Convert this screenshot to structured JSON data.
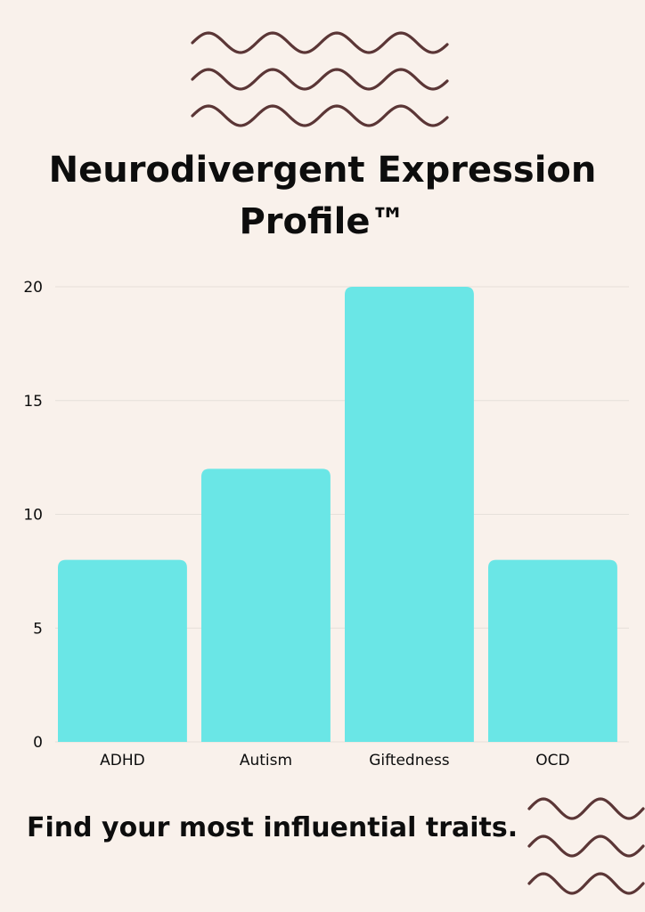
{
  "page": {
    "title": "Neurodivergent Expression Profile™",
    "tagline": "Find your most influential traits."
  },
  "colors": {
    "background": "#f9f1eb",
    "bar": "#6ae6e6",
    "text": "#0d0d0d",
    "gridline": "#e6e0da",
    "wave": "#5b3636"
  },
  "decorations": {
    "top_wave_icon": "wavy-lines-icon",
    "bottom_wave_icon": "wavy-lines-icon"
  },
  "chart_data": {
    "type": "bar",
    "title": "",
    "xlabel": "",
    "ylabel": "",
    "categories": [
      "ADHD",
      "Autism",
      "Giftedness",
      "OCD"
    ],
    "values": [
      8,
      12,
      20,
      8
    ],
    "ylim": [
      0,
      20
    ],
    "yticks": [
      "0",
      "5",
      "10",
      "15",
      "20"
    ],
    "grid": true,
    "legend": "none"
  }
}
